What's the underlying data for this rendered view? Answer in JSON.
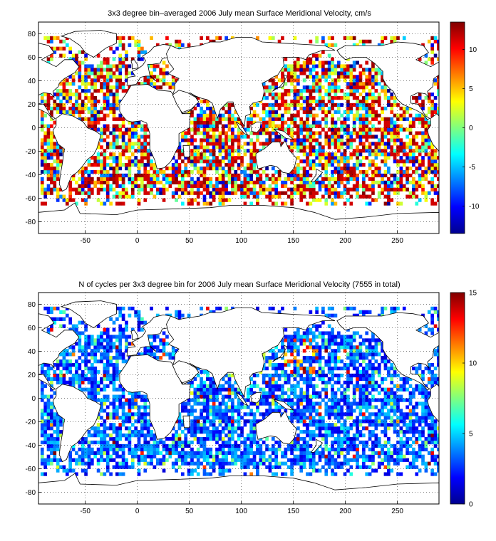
{
  "chart_data": [
    {
      "type": "heatmap",
      "title": "3x3 degree bin–averaged 2006 July mean Surface Meridional Velocity, cm/s",
      "xlabel": "",
      "ylabel": "",
      "xlim": [
        -95,
        290
      ],
      "ylim": [
        -90,
        90
      ],
      "x_ticks": [
        -50,
        0,
        50,
        100,
        150,
        200,
        250
      ],
      "y_ticks": [
        80,
        60,
        40,
        20,
        0,
        -20,
        -40,
        -60,
        -80
      ],
      "grid": "dotted",
      "colorbar": {
        "range": [
          -13.5,
          13.5
        ],
        "ticks": [
          10,
          5,
          0,
          -5,
          -10
        ],
        "colormap": "jet",
        "placement": "right"
      },
      "cell_size_deg": 3,
      "values_description": "noisy per-bin velocity field, cm/s"
    },
    {
      "type": "heatmap",
      "title": "N of cycles per 3x3 degree bin for 2006 July mean Surface Meridional Velocity (7555 in total)",
      "xlabel": "",
      "ylabel": "",
      "xlim": [
        -95,
        290
      ],
      "ylim": [
        -90,
        90
      ],
      "x_ticks": [
        -50,
        0,
        50,
        100,
        150,
        200,
        250
      ],
      "y_ticks": [
        80,
        60,
        40,
        20,
        0,
        -20,
        -40,
        -60,
        -80
      ],
      "grid": "dotted",
      "colorbar": {
        "range": [
          0,
          15
        ],
        "ticks": [
          15,
          10,
          5,
          0
        ],
        "colormap": "jet",
        "placement": "right"
      },
      "cell_size_deg": 3,
      "total_cycles": 7555
    }
  ]
}
